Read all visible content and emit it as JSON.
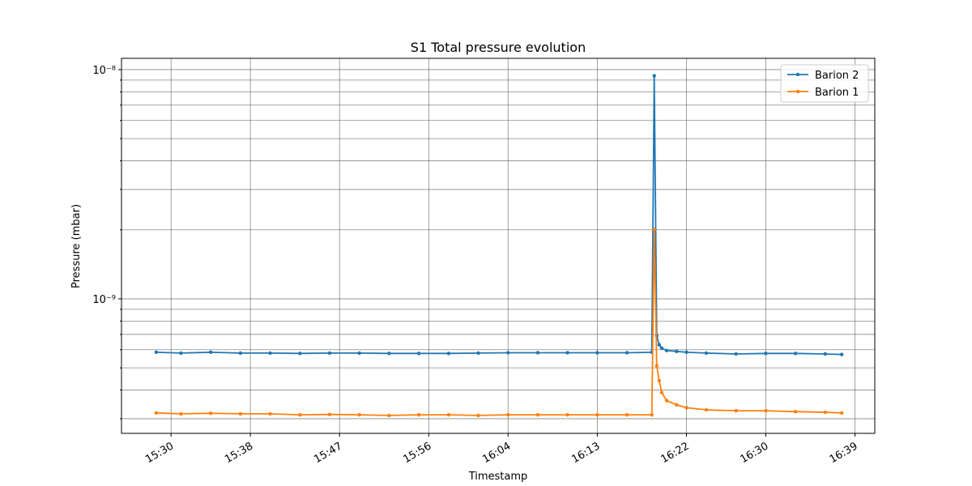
{
  "chart_data": {
    "type": "line",
    "title": "S1 Total pressure evolution",
    "x_label": "Timestamp",
    "y_label": "Pressure (mbar)",
    "log_y": true,
    "grid": true,
    "legend": "upper right",
    "x": [
      "15:28:30",
      "15:31:00",
      "15:34:00",
      "15:37:00",
      "15:40:00",
      "15:43:00",
      "15:46:00",
      "15:49:00",
      "15:52:00",
      "15:55:00",
      "15:58:00",
      "16:01:00",
      "16:04:00",
      "16:07:00",
      "16:10:00",
      "16:13:00",
      "16:16:00",
      "16:18:30",
      "16:18:45",
      "16:19:00",
      "16:19:15",
      "16:19:30",
      "16:20:00",
      "16:21:00",
      "16:22:00",
      "16:24:00",
      "16:27:00",
      "16:30:00",
      "16:33:00",
      "16:36:00",
      "16:37:40"
    ],
    "series": [
      {
        "name": "Barion 2",
        "color": "#1f77b4",
        "values": [
          5.85e-10,
          5.8e-10,
          5.85e-10,
          5.8e-10,
          5.8e-10,
          5.78e-10,
          5.8e-10,
          5.8e-10,
          5.78e-10,
          5.78e-10,
          5.78e-10,
          5.8e-10,
          5.82e-10,
          5.82e-10,
          5.82e-10,
          5.82e-10,
          5.82e-10,
          5.85e-10,
          9.4e-09,
          6.9e-10,
          6.3e-10,
          6.1e-10,
          5.95e-10,
          5.9e-10,
          5.85e-10,
          5.8e-10,
          5.75e-10,
          5.78e-10,
          5.78e-10,
          5.75e-10,
          5.72e-10
        ]
      },
      {
        "name": "Barion 1",
        "color": "#ff7f0e",
        "values": [
          3.18e-10,
          3.15e-10,
          3.17e-10,
          3.15e-10,
          3.15e-10,
          3.12e-10,
          3.13e-10,
          3.12e-10,
          3.1e-10,
          3.12e-10,
          3.12e-10,
          3.1e-10,
          3.12e-10,
          3.12e-10,
          3.12e-10,
          3.12e-10,
          3.12e-10,
          3.12e-10,
          2.01e-09,
          5.1e-10,
          4.4e-10,
          3.9e-10,
          3.6e-10,
          3.45e-10,
          3.35e-10,
          3.28e-10,
          3.25e-10,
          3.25e-10,
          3.22e-10,
          3.2e-10,
          3.18e-10
        ]
      }
    ],
    "xlim": [
      "15:25:00",
      "16:41:00"
    ],
    "xticks": [
      "15:30",
      "15:38",
      "15:47",
      "15:56",
      "16:04",
      "16:13",
      "16:22",
      "16:30",
      "16:39"
    ],
    "ylim": [
      2.59e-10,
      1.12e-08
    ],
    "yticks": [
      {
        "value": 1e-09,
        "label": "10⁻⁹"
      },
      {
        "value": 1e-08,
        "label": "10⁻⁸"
      }
    ],
    "yminorticks": [
      3e-10,
      4e-10,
      5e-10,
      6e-10,
      7e-10,
      8e-10,
      9e-10,
      2e-09,
      3e-09,
      4e-09,
      5e-09,
      6e-09,
      7e-09,
      8e-09,
      9e-09
    ]
  }
}
